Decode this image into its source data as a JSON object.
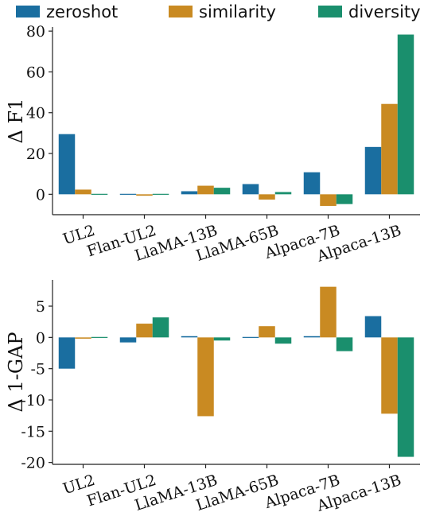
{
  "colors": {
    "zeroshot": "#1a6ea0",
    "similarity": "#c98a22",
    "diversity": "#1a8f6d"
  },
  "legend": [
    {
      "key": "zeroshot",
      "label": "zeroshot"
    },
    {
      "key": "similarity",
      "label": "similarity"
    },
    {
      "key": "diversity",
      "label": "diversity"
    }
  ],
  "chart_data": [
    {
      "type": "bar",
      "ylabel": "Δ F1",
      "xlabel": "",
      "title": "",
      "categories": [
        "UL2",
        "Flan-UL2",
        "LlaMA-13B",
        "LlaMA-65B",
        "Alpaca-7B",
        "Alpaca-13B"
      ],
      "ylim": [
        -10,
        82
      ],
      "yticks": [
        0,
        20,
        40,
        60,
        80
      ],
      "ytick_labels": [
        "0",
        "20",
        "40",
        "60",
        "80"
      ],
      "series": [
        {
          "name": "zeroshot",
          "values": [
            29.5,
            -0.3,
            1.5,
            5.0,
            10.8,
            23.2
          ]
        },
        {
          "name": "similarity",
          "values": [
            2.3,
            -0.7,
            4.2,
            -2.6,
            -5.7,
            44.3
          ]
        },
        {
          "name": "diversity",
          "values": [
            0.3,
            -0.4,
            3.2,
            1.1,
            -4.8,
            78.3
          ]
        }
      ]
    },
    {
      "type": "bar",
      "ylabel": "Δ 1-GAP",
      "xlabel": "",
      "title": "",
      "categories": [
        "UL2",
        "Flan-UL2",
        "LlaMA-13B",
        "LlaMA-65B",
        "Alpaca-7B",
        "Alpaca-13B"
      ],
      "ylim": [
        -20.3,
        9.2
      ],
      "yticks": [
        5,
        0,
        -5,
        -10,
        -15,
        -20
      ],
      "ytick_labels": [
        "5",
        "0",
        "-5",
        "-10",
        "-15",
        "-20"
      ],
      "series": [
        {
          "name": "zeroshot",
          "values": [
            -5.0,
            -0.8,
            0.2,
            0.0,
            0.2,
            3.4
          ]
        },
        {
          "name": "similarity",
          "values": [
            -0.2,
            2.2,
            -12.6,
            1.8,
            8.1,
            -12.2
          ]
        },
        {
          "name": "diversity",
          "values": [
            0.0,
            3.2,
            -0.5,
            -1.0,
            -2.2,
            -19.1
          ]
        }
      ]
    }
  ]
}
